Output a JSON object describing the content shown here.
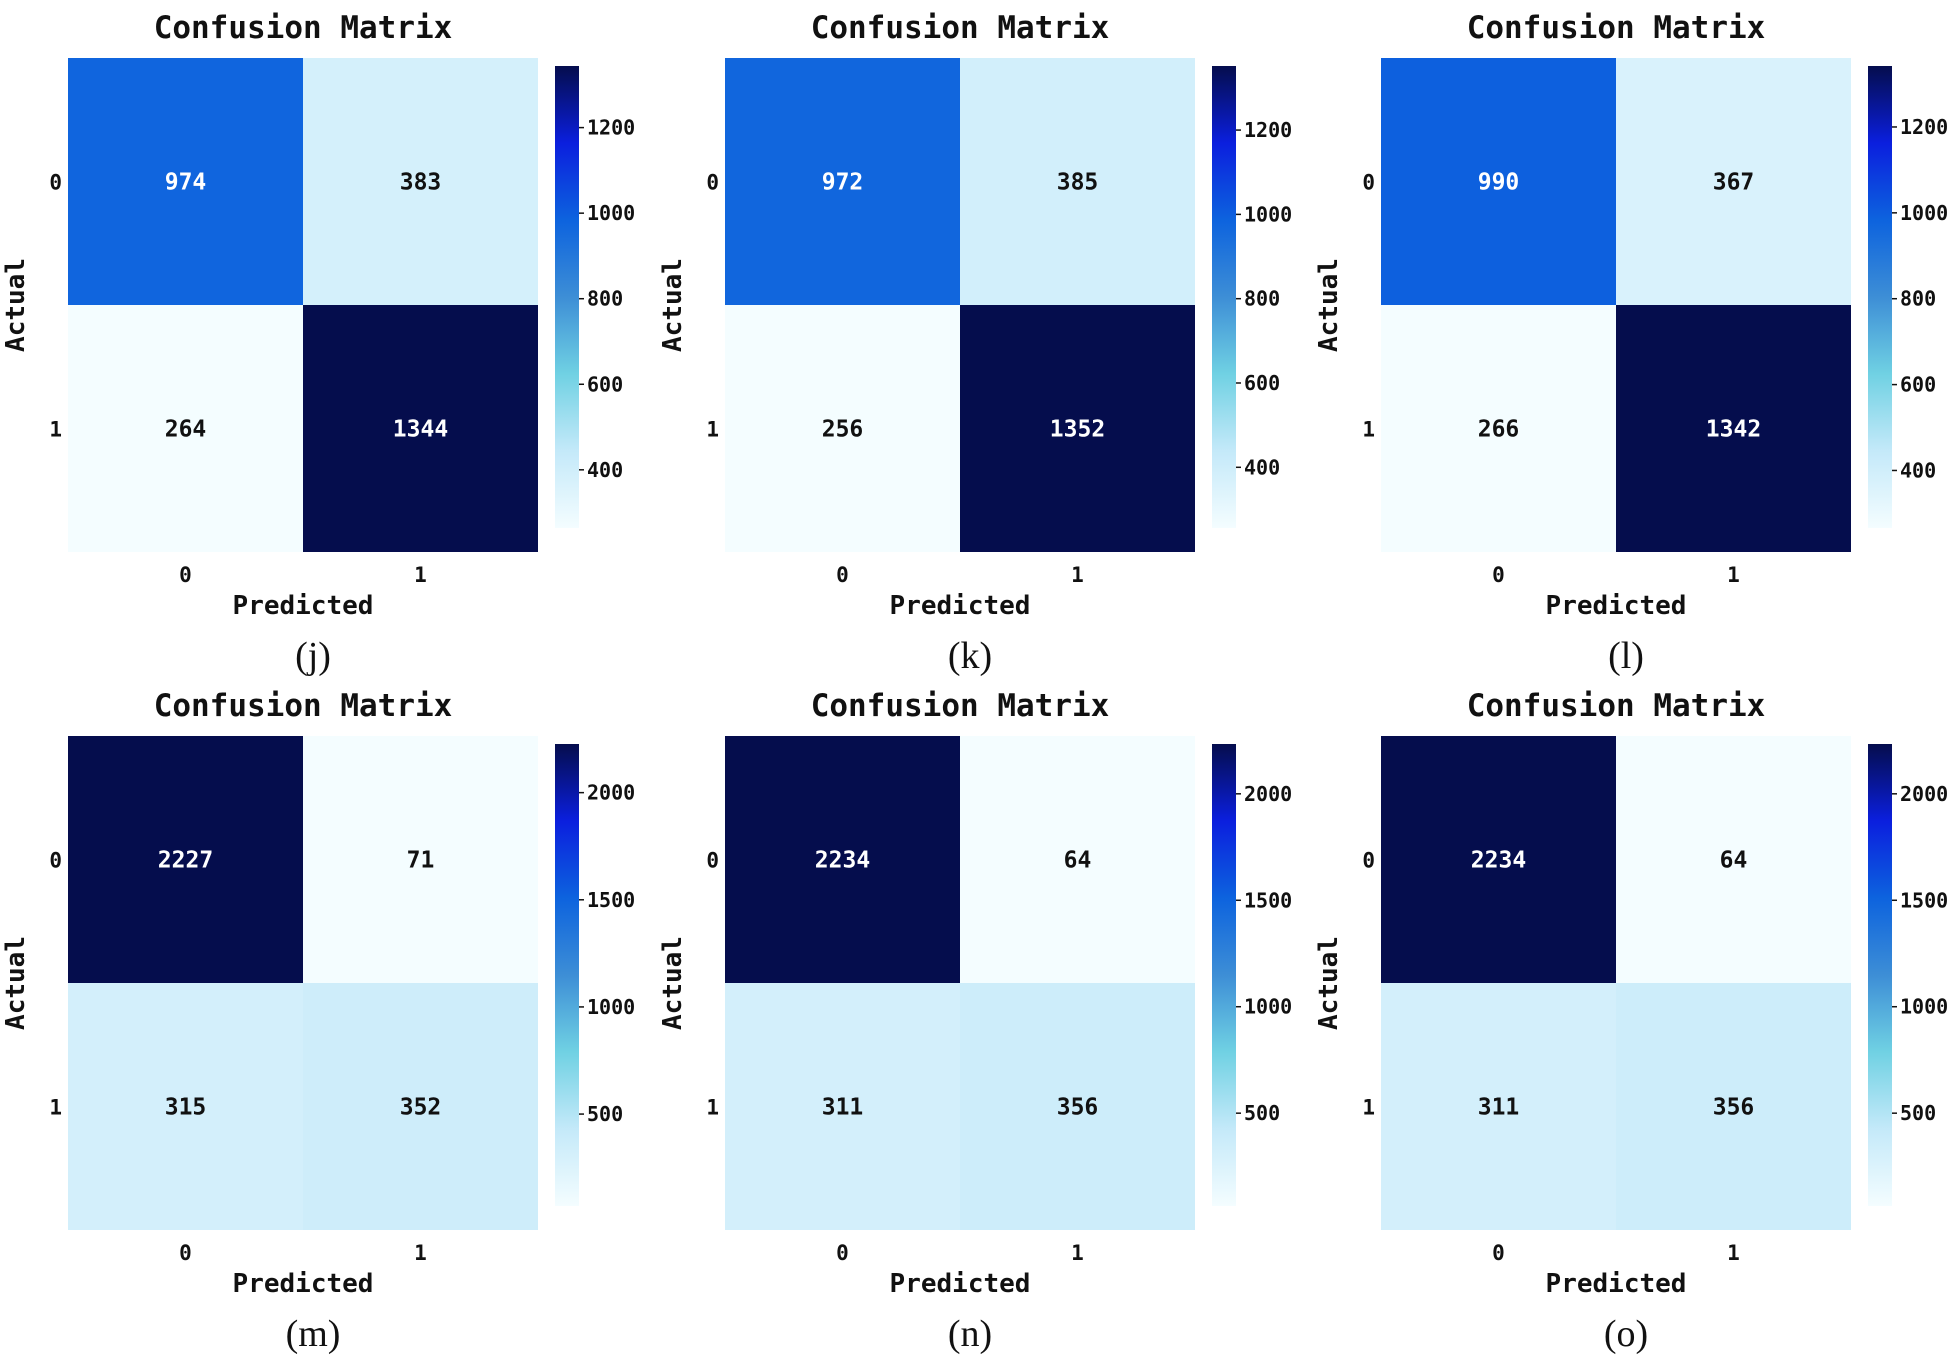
{
  "chart_data": [
    {
      "type": "heatmap",
      "caption": "(j)",
      "title": "Confusion Matrix",
      "xlabel": "Predicted",
      "ylabel": "Actual",
      "x_ticks": [
        "0",
        "1"
      ],
      "y_ticks": [
        "0",
        "1"
      ],
      "values": [
        [
          974,
          383
        ],
        [
          264,
          1344
        ]
      ],
      "colorbar_ticks": [
        400,
        600,
        800,
        1000,
        1200
      ],
      "colorbar_tick_labels": [
        "400",
        "600",
        "800",
        "1000",
        "1200"
      ]
    },
    {
      "type": "heatmap",
      "caption": "(k)",
      "title": "Confusion Matrix",
      "xlabel": "Predicted",
      "ylabel": "Actual",
      "x_ticks": [
        "0",
        "1"
      ],
      "y_ticks": [
        "0",
        "1"
      ],
      "values": [
        [
          972,
          385
        ],
        [
          256,
          1352
        ]
      ],
      "colorbar_ticks": [
        400,
        600,
        800,
        1000,
        1200
      ],
      "colorbar_tick_labels": [
        "400",
        "600",
        "800",
        "1000",
        "1200"
      ]
    },
    {
      "type": "heatmap",
      "caption": "(l)",
      "title": "Confusion Matrix",
      "xlabel": "Predicted",
      "ylabel": "Actual",
      "x_ticks": [
        "0",
        "1"
      ],
      "y_ticks": [
        "0",
        "1"
      ],
      "values": [
        [
          990,
          367
        ],
        [
          266,
          1342
        ]
      ],
      "colorbar_ticks": [
        400,
        600,
        800,
        1000,
        1200
      ],
      "colorbar_tick_labels": [
        "400",
        "600",
        "800",
        "1000",
        "1200"
      ]
    },
    {
      "type": "heatmap",
      "caption": "(m)",
      "title": "Confusion Matrix",
      "xlabel": "Predicted",
      "ylabel": "Actual",
      "x_ticks": [
        "0",
        "1"
      ],
      "y_ticks": [
        "0",
        "1"
      ],
      "values": [
        [
          2227,
          71
        ],
        [
          315,
          352
        ]
      ],
      "colorbar_ticks": [
        500,
        1000,
        1500,
        2000
      ],
      "colorbar_tick_labels": [
        "500",
        "1000",
        "1500",
        "2000"
      ]
    },
    {
      "type": "heatmap",
      "caption": "(n)",
      "title": "Confusion Matrix",
      "xlabel": "Predicted",
      "ylabel": "Actual",
      "x_ticks": [
        "0",
        "1"
      ],
      "y_ticks": [
        "0",
        "1"
      ],
      "values": [
        [
          2234,
          64
        ],
        [
          311,
          356
        ]
      ],
      "colorbar_ticks": [
        500,
        1000,
        1500,
        2000
      ],
      "colorbar_tick_labels": [
        "500",
        "1000",
        "1500",
        "2000"
      ]
    },
    {
      "type": "heatmap",
      "caption": "(o)",
      "title": "Confusion Matrix",
      "xlabel": "Predicted",
      "ylabel": "Actual",
      "x_ticks": [
        "0",
        "1"
      ],
      "y_ticks": [
        "0",
        "1"
      ],
      "values": [
        [
          2234,
          64
        ],
        [
          311,
          356
        ]
      ],
      "colorbar_ticks": [
        500,
        1000,
        1500,
        2000
      ],
      "colorbar_tick_labels": [
        "500",
        "1000",
        "1500",
        "2000"
      ]
    }
  ],
  "colormap": {
    "name": "custom-blues",
    "stops": [
      "#f4fdff",
      "#c4e9f9",
      "#70d1e3",
      "#3d8ed6",
      "#0d63de",
      "#0b1fde",
      "#050d4d"
    ]
  }
}
